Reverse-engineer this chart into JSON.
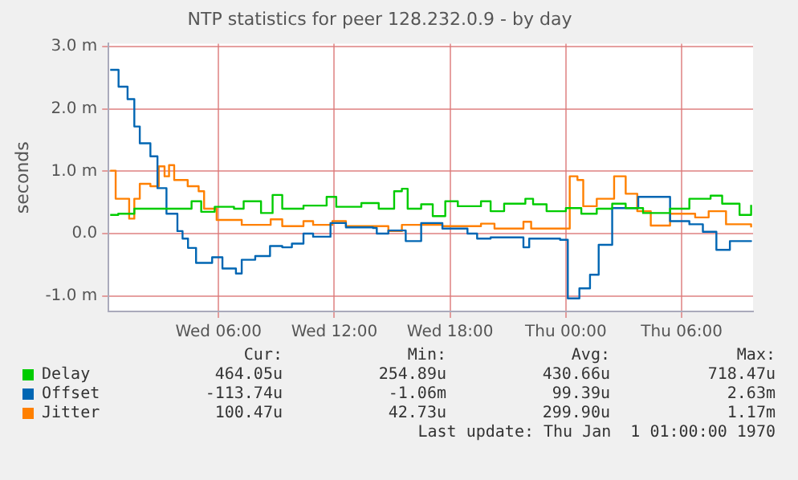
{
  "chart_data": {
    "type": "step",
    "title": "NTP statistics for peer 128.232.0.9 - by day",
    "ylabel": "seconds",
    "xlim": [
      "--01-03T00:18",
      "--01-04T09:42"
    ],
    "xticks": [
      {
        "value": "--01-03T06:00",
        "label": "Wed 06:00"
      },
      {
        "value": "--01-03T12:00",
        "label": "Wed 12:00"
      },
      {
        "value": "--01-03T18:00",
        "label": "Wed 18:00"
      },
      {
        "value": "--01-04T00:00",
        "label": "Thu 00:00"
      },
      {
        "value": "--01-04T06:00",
        "label": "Thu 06:00"
      }
    ],
    "ylim": [
      -1.25,
      3.05
    ],
    "yticks": [
      {
        "value": -1,
        "label": "-1.0 m"
      },
      {
        "value": 0,
        "label": "0.0"
      },
      {
        "value": 1,
        "label": "1.0 m"
      },
      {
        "value": 2,
        "label": "2.0 m"
      },
      {
        "value": 3,
        "label": "3.0 m"
      }
    ],
    "grid": true,
    "legend": "bottom",
    "marker": "none",
    "line_style": "solid",
    "series": [
      {
        "name": "Delay",
        "color": "#00cc00",
        "x": [
          "--01-03T00:23",
          "--01-03T00:48",
          "--01-03T01:38",
          "--01-03T02:48",
          "--01-03T04:00",
          "--01-03T04:36",
          "--01-03T05:06",
          "--01-03T05:48",
          "--01-03T06:48",
          "--01-03T07:18",
          "--01-03T08:12",
          "--01-03T08:48",
          "--01-03T09:18",
          "--01-03T10:24",
          "--01-03T11:36",
          "--01-03T12:06",
          "--01-03T13:24",
          "--01-03T14:18",
          "--01-03T15:06",
          "--01-03T15:30",
          "--01-03T15:48",
          "--01-03T16:30",
          "--01-03T17:06",
          "--01-03T17:45",
          "--01-03T18:24",
          "--01-03T19:36",
          "--01-03T20:06",
          "--01-03T20:48",
          "--01-03T21:54",
          "--01-03T22:18",
          "--01-03T23:00",
          "--01-04T00:00",
          "--01-04T00:48",
          "--01-04T01:36",
          "--01-04T02:24",
          "--01-04T03:06",
          "--01-04T04:00",
          "--01-04T05:24",
          "--01-04T06:24",
          "--01-04T07:30",
          "--01-04T08:06",
          "--01-04T09:00",
          "--01-04T09:36"
        ],
        "values": [
          0.3,
          0.32,
          0.4,
          0.4,
          0.4,
          0.52,
          0.35,
          0.43,
          0.4,
          0.52,
          0.33,
          0.62,
          0.4,
          0.45,
          0.59,
          0.43,
          0.49,
          0.4,
          0.68,
          0.72,
          0.4,
          0.47,
          0.28,
          0.52,
          0.44,
          0.52,
          0.36,
          0.48,
          0.56,
          0.47,
          0.36,
          0.41,
          0.32,
          0.4,
          0.48,
          0.41,
          0.33,
          0.4,
          0.56,
          0.61,
          0.48,
          0.3,
          0.46
        ]
      },
      {
        "name": "Offset",
        "color": "#0066b3",
        "x": [
          "--01-03T00:23",
          "--01-03T00:49",
          "--01-03T01:17",
          "--01-03T01:38",
          "--01-03T01:55",
          "--01-03T02:28",
          "--01-03T02:50",
          "--01-03T03:18",
          "--01-03T03:52",
          "--01-03T04:08",
          "--01-03T04:25",
          "--01-03T04:50",
          "--01-03T05:40",
          "--01-03T06:12",
          "--01-03T06:54",
          "--01-03T07:12",
          "--01-03T07:54",
          "--01-03T08:40",
          "--01-03T09:18",
          "--01-03T09:48",
          "--01-03T10:24",
          "--01-03T10:54",
          "--01-03T11:48",
          "--01-03T12:36",
          "--01-03T14:00",
          "--01-03T14:12",
          "--01-03T14:48",
          "--01-03T15:42",
          "--01-03T16:30",
          "--01-03T17:36",
          "--01-03T18:54",
          "--01-03T19:24",
          "--01-03T20:06",
          "--01-03T21:48",
          "--01-03T22:06",
          "--01-03T23:42",
          "--01-04T00:06",
          "--01-04T00:42",
          "--01-04T01:15",
          "--01-04T01:42",
          "--01-04T02:24",
          "--01-04T03:45",
          "--01-04T05:24",
          "--01-04T06:24",
          "--01-04T07:06",
          "--01-04T07:48",
          "--01-04T08:30",
          "--01-04T09:36"
        ],
        "values": [
          2.63,
          2.36,
          2.16,
          1.72,
          1.45,
          1.24,
          0.73,
          0.32,
          0.04,
          -0.08,
          -0.23,
          -0.47,
          -0.38,
          -0.56,
          -0.64,
          -0.42,
          -0.36,
          -0.2,
          -0.22,
          -0.16,
          0.0,
          -0.05,
          0.17,
          0.1,
          0.09,
          0.0,
          0.05,
          -0.12,
          0.17,
          0.08,
          0.0,
          -0.08,
          -0.06,
          -0.22,
          -0.08,
          -0.1,
          -1.04,
          -0.88,
          -0.66,
          -0.18,
          0.41,
          0.59,
          0.2,
          0.15,
          0.03,
          -0.26,
          -0.12,
          -0.11
        ]
      },
      {
        "name": "Jitter",
        "color": "#ff8000",
        "x": [
          "--01-03T00:23",
          "--01-03T00:40",
          "--01-03T01:22",
          "--01-03T01:38",
          "--01-03T01:55",
          "--01-03T02:28",
          "--01-03T02:54",
          "--01-03T03:12",
          "--01-03T03:26",
          "--01-03T03:42",
          "--01-03T04:24",
          "--01-03T04:58",
          "--01-03T05:15",
          "--01-03T05:54",
          "--01-03T07:12",
          "--01-03T08:42",
          "--01-03T09:18",
          "--01-03T10:24",
          "--01-03T10:54",
          "--01-03T11:54",
          "--01-03T12:36",
          "--01-03T14:48",
          "--01-03T15:30",
          "--01-03T17:06",
          "--01-03T17:36",
          "--01-03T19:36",
          "--01-03T20:18",
          "--01-03T21:48",
          "--01-03T22:12",
          "--01-03T23:48",
          "--01-04T00:12",
          "--01-04T00:36",
          "--01-04T00:54",
          "--01-04T01:36",
          "--01-04T02:30",
          "--01-04T03:06",
          "--01-04T03:42",
          "--01-04T04:24",
          "--01-04T05:24",
          "--01-04T06:42",
          "--01-04T07:24",
          "--01-04T08:18",
          "--01-04T09:36"
        ],
        "values": [
          1.01,
          0.56,
          0.24,
          0.56,
          0.8,
          0.76,
          1.08,
          0.92,
          1.1,
          0.86,
          0.76,
          0.68,
          0.4,
          0.22,
          0.14,
          0.23,
          0.12,
          0.2,
          0.14,
          0.2,
          0.12,
          0.04,
          0.14,
          0.14,
          0.12,
          0.16,
          0.08,
          0.19,
          0.08,
          0.08,
          0.92,
          0.86,
          0.44,
          0.56,
          0.92,
          0.64,
          0.36,
          0.13,
          0.32,
          0.26,
          0.36,
          0.15,
          0.1
        ]
      }
    ],
    "annotations": [
      "Cur:",
      "Min:",
      "Avg:",
      "Max:",
      "464.05u",
      "254.89u",
      "430.66u",
      "718.47u",
      "-113.74u",
      "-1.06m",
      "99.39u",
      "2.63m",
      "100.47u",
      "42.73u",
      "299.90u",
      "1.17m",
      "Last update: Thu Jan  1 01:00:00 1970"
    ]
  }
}
